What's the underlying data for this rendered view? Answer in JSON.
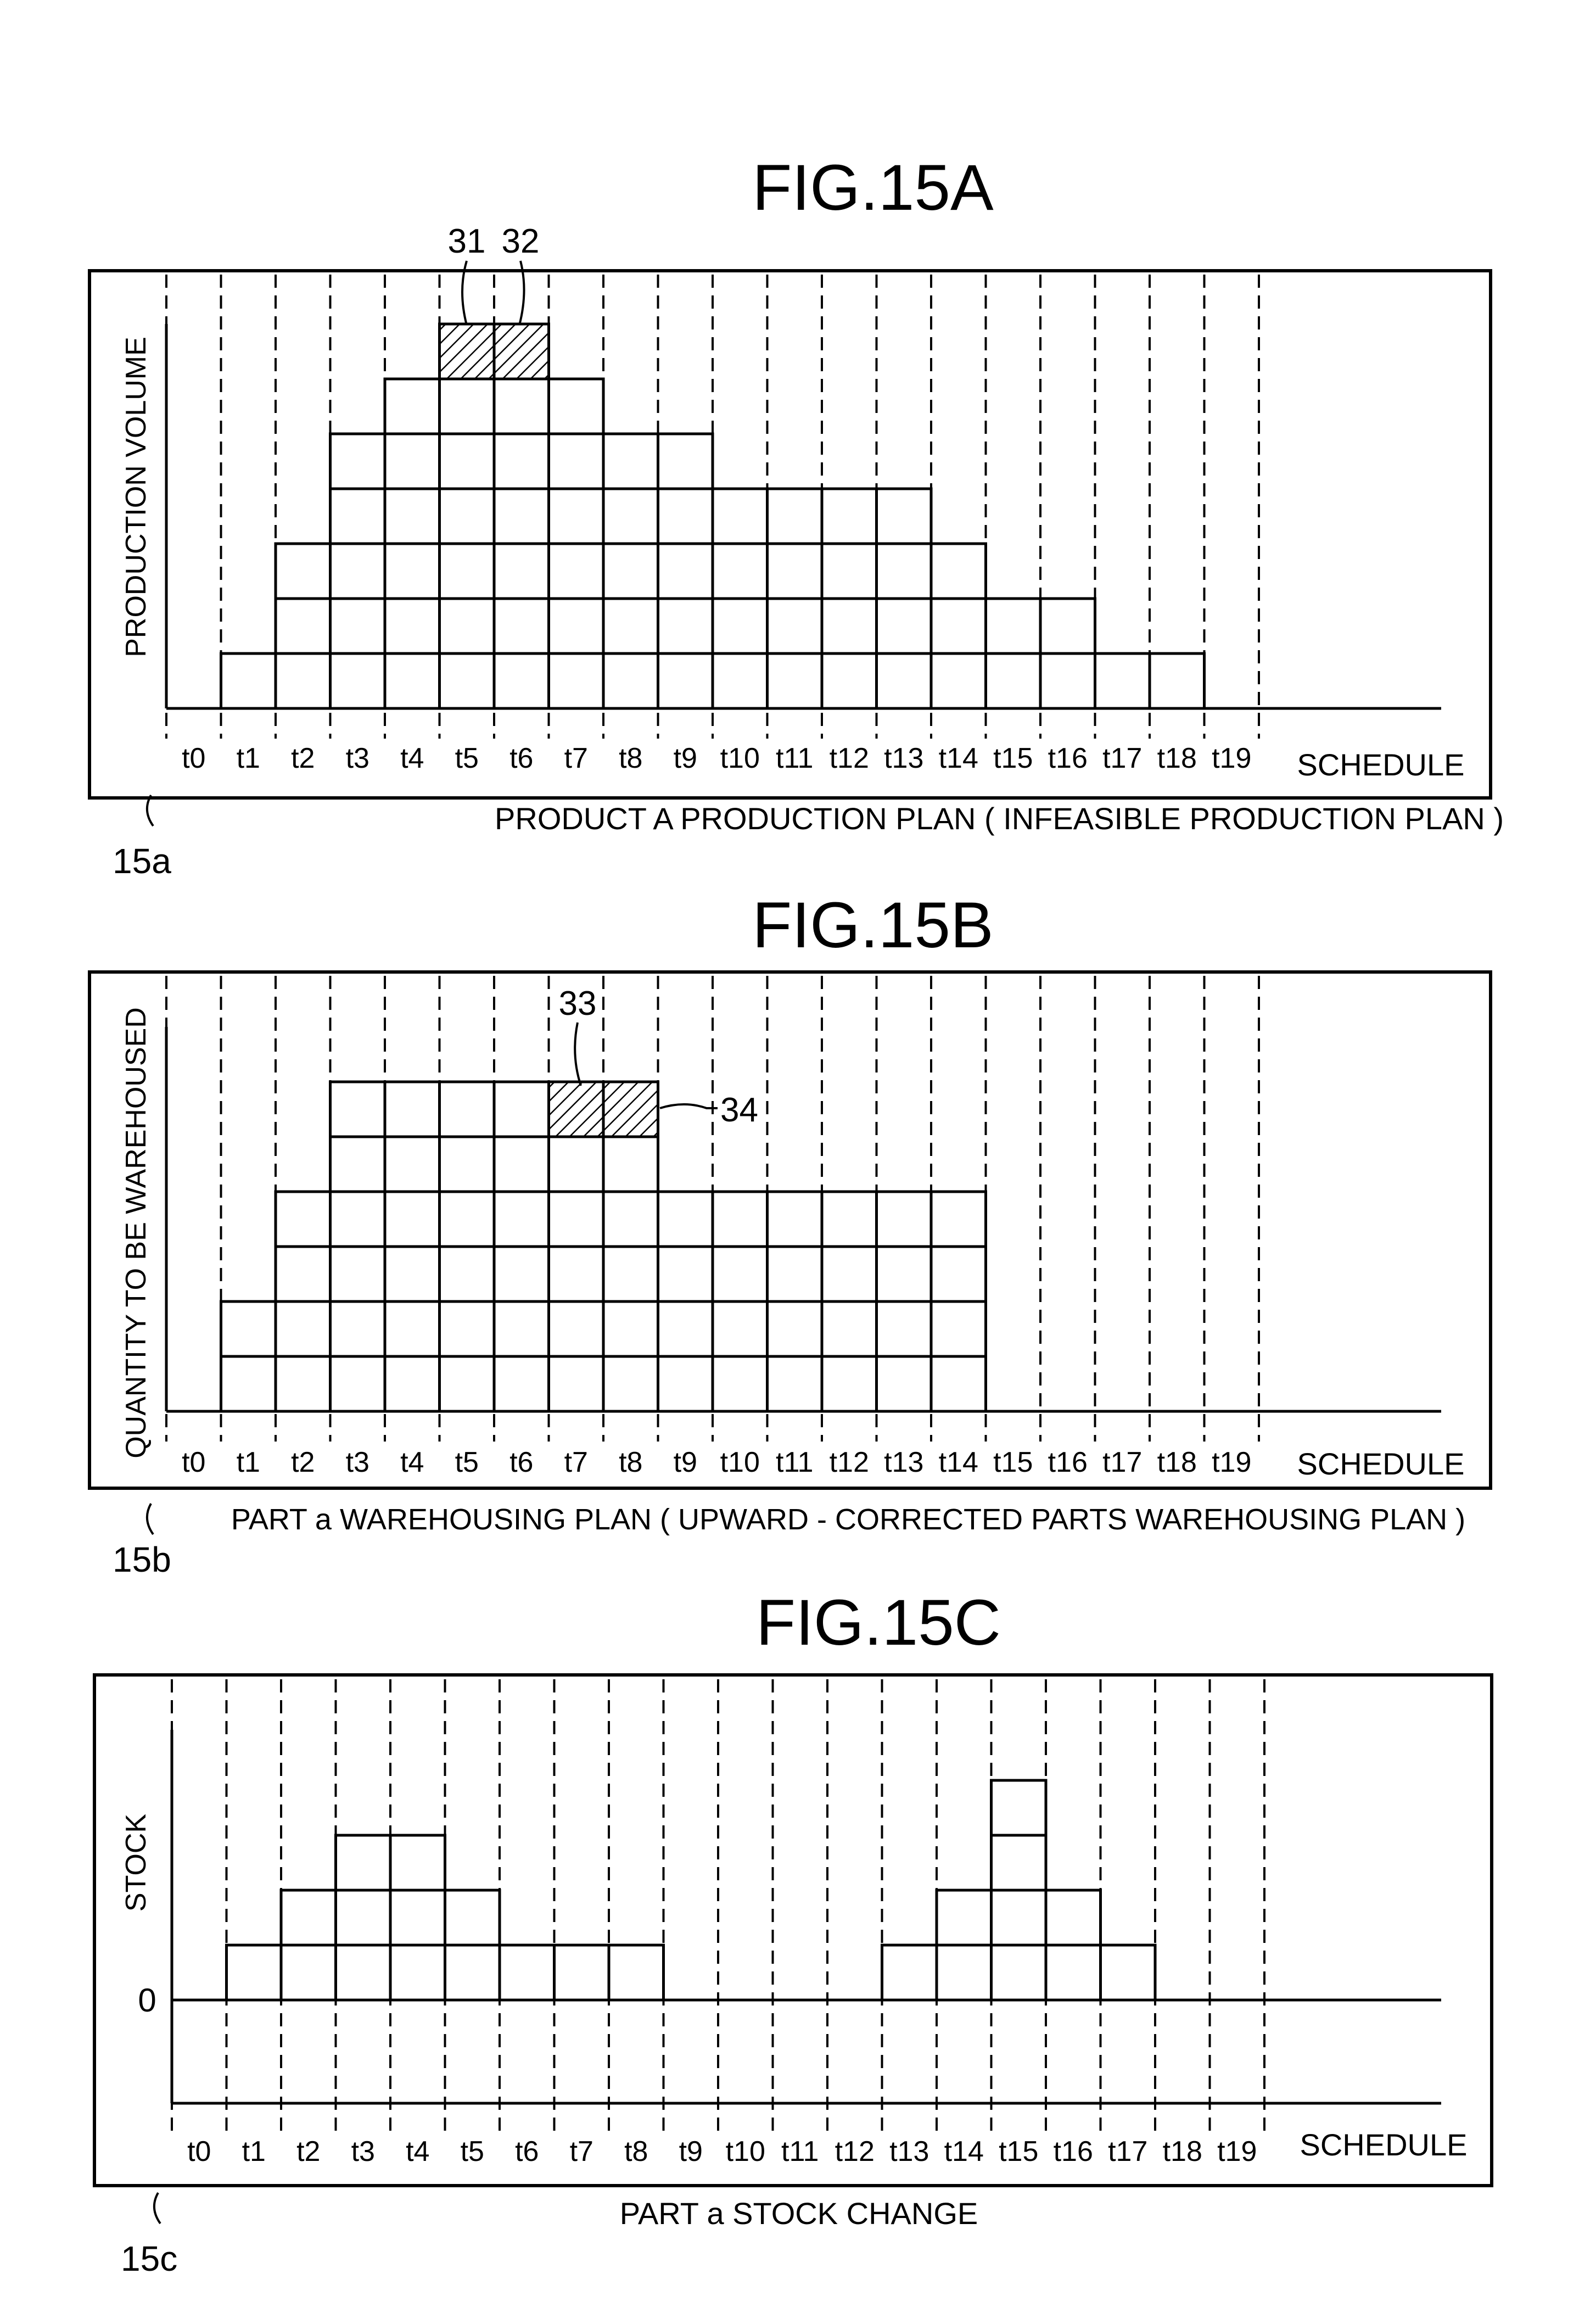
{
  "page": {
    "background": "#ffffff",
    "ink": "#000000"
  },
  "chart_data": [
    {
      "type": "bar",
      "figure_label": "FIG.15A",
      "title": "PRODUCT A PRODUCTION PLAN ( INFEASIBLE PRODUCTION PLAN )",
      "ylabel": "PRODUCTION VOLUME",
      "xlabel": "SCHEDULE",
      "ref_label": "15a",
      "categories": [
        "t0",
        "t1",
        "t2",
        "t3",
        "t4",
        "t5",
        "t6",
        "t7",
        "t8",
        "t9",
        "t10",
        "t11",
        "t12",
        "t13",
        "t14",
        "t15",
        "t16",
        "t17",
        "t18",
        "t19"
      ],
      "values": [
        0,
        1,
        3,
        5,
        6,
        7,
        7,
        6,
        5,
        5,
        4,
        4,
        4,
        4,
        3,
        2,
        2,
        1,
        1,
        0
      ],
      "ylim": [
        0,
        7
      ],
      "hatched": [
        {
          "category": "t5",
          "level": 7,
          "ref": "31"
        },
        {
          "category": "t6",
          "level": 7,
          "ref": "32"
        }
      ],
      "grid": "dashed vertical"
    },
    {
      "type": "bar",
      "figure_label": "FIG.15B",
      "title": "PART a WAREHOUSING PLAN ( UPWARD - CORRECTED PARTS WAREHOUSING PLAN )",
      "ylabel": "QUANTITY TO BE WAREHOUSED",
      "xlabel": "SCHEDULE",
      "ref_label": "15b",
      "categories": [
        "t0",
        "t1",
        "t2",
        "t3",
        "t4",
        "t5",
        "t6",
        "t7",
        "t8",
        "t9",
        "t10",
        "t11",
        "t12",
        "t13",
        "t14",
        "t15",
        "t16",
        "t17",
        "t18",
        "t19"
      ],
      "values": [
        0,
        2,
        4,
        6,
        6,
        6,
        6,
        6,
        6,
        4,
        4,
        4,
        4,
        4,
        4,
        0,
        0,
        0,
        0,
        0
      ],
      "ylim": [
        0,
        7
      ],
      "hatched": [
        {
          "category": "t7",
          "level": 6,
          "ref": "33"
        },
        {
          "category": "t8",
          "level": 6,
          "ref": "34"
        }
      ],
      "grid": "dashed vertical"
    },
    {
      "type": "bar",
      "figure_label": "FIG.15C",
      "title": "PART a STOCK CHANGE",
      "ylabel": "STOCK",
      "xlabel": "SCHEDULE",
      "ref_label": "15c",
      "zero_label": "0",
      "categories": [
        "t0",
        "t1",
        "t2",
        "t3",
        "t4",
        "t5",
        "t6",
        "t7",
        "t8",
        "t9",
        "t10",
        "t11",
        "t12",
        "t13",
        "t14",
        "t15",
        "t16",
        "t17",
        "t18",
        "t19"
      ],
      "values": [
        0,
        1,
        2,
        3,
        3,
        2,
        1,
        1,
        1,
        0,
        0,
        0,
        0,
        1,
        2,
        4,
        2,
        1,
        0,
        0
      ],
      "ylim": [
        0,
        5
      ],
      "grid": "dashed vertical"
    }
  ]
}
